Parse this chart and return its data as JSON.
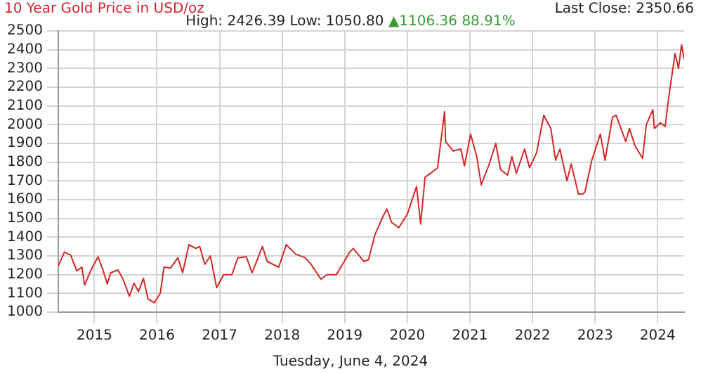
{
  "chart_data": {
    "type": "line",
    "title": "10 Year Gold Price in USD/oz",
    "subtitle": "High: 2426.39 Low: 1050.80",
    "annotations": [
      "▲1106.36 88.91%",
      "Last Close: 2350.66",
      "Tuesday, June 4, 2024"
    ],
    "x": [
      "2014-06-04",
      "2014-07-10",
      "2014-08-15",
      "2014-09-20",
      "2014-10-20",
      "2014-11-05",
      "2014-12-10",
      "2015-01-22",
      "2015-02-20",
      "2015-03-17",
      "2015-04-06",
      "2015-05-18",
      "2015-06-15",
      "2015-07-24",
      "2015-08-20",
      "2015-09-15",
      "2015-10-14",
      "2015-11-10",
      "2015-12-17",
      "2016-01-20",
      "2016-02-11",
      "2016-03-20",
      "2016-05-02",
      "2016-05-30",
      "2016-07-06",
      "2016-08-15",
      "2016-09-07",
      "2016-10-07",
      "2016-11-08",
      "2016-12-15",
      "2017-01-25",
      "2017-03-14",
      "2017-04-18",
      "2017-06-06",
      "2017-07-10",
      "2017-09-08",
      "2017-10-06",
      "2017-12-12",
      "2018-01-25",
      "2018-03-20",
      "2018-05-15",
      "2018-06-15",
      "2018-08-16",
      "2018-09-20",
      "2018-11-13",
      "2019-01-30",
      "2019-02-20",
      "2019-04-23",
      "2019-05-20",
      "2019-06-25",
      "2019-08-12",
      "2019-09-04",
      "2019-10-01",
      "2019-11-12",
      "2019-12-31",
      "2020-02-24",
      "2020-03-19",
      "2020-04-14",
      "2020-05-15",
      "2020-06-26",
      "2020-08-06",
      "2020-08-12",
      "2020-09-25",
      "2020-11-09",
      "2020-11-30",
      "2021-01-05",
      "2021-02-10",
      "2021-03-08",
      "2021-04-20",
      "2021-06-01",
      "2021-06-29",
      "2021-08-09",
      "2021-09-03",
      "2021-09-29",
      "2021-11-16",
      "2021-12-15",
      "2022-01-25",
      "2022-03-08",
      "2022-04-18",
      "2022-05-16",
      "2022-06-10",
      "2022-07-21",
      "2022-08-15",
      "2022-09-26",
      "2022-10-20",
      "2022-11-03",
      "2022-12-13",
      "2023-02-01",
      "2023-02-28",
      "2023-04-13",
      "2023-05-04",
      "2023-06-29",
      "2023-07-20",
      "2023-08-21",
      "2023-10-05",
      "2023-10-27",
      "2023-12-04",
      "2023-12-13",
      "2024-01-17",
      "2024-02-14",
      "2024-03-08",
      "2024-04-12",
      "2024-05-02",
      "2024-05-20",
      "2024-06-04"
    ],
    "series": [
      {
        "color": "#d62728",
        "values": [
          1245,
          1320,
          1305,
          1220,
          1240,
          1145,
          1220,
          1295,
          1225,
          1150,
          1210,
          1225,
          1180,
          1085,
          1155,
          1110,
          1180,
          1070,
          1050,
          1100,
          1240,
          1235,
          1290,
          1210,
          1360,
          1340,
          1350,
          1255,
          1300,
          1130,
          1200,
          1200,
          1290,
          1295,
          1210,
          1350,
          1270,
          1240,
          1360,
          1310,
          1290,
          1260,
          1175,
          1200,
          1200,
          1320,
          1340,
          1270,
          1280,
          1410,
          1510,
          1550,
          1480,
          1450,
          1520,
          1670,
          1470,
          1720,
          1740,
          1770,
          2070,
          1910,
          1860,
          1870,
          1780,
          1950,
          1830,
          1680,
          1780,
          1900,
          1760,
          1730,
          1830,
          1740,
          1870,
          1770,
          1850,
          2050,
          1980,
          1810,
          1870,
          1700,
          1790,
          1630,
          1630,
          1640,
          1810,
          1950,
          1810,
          2040,
          2050,
          1910,
          1980,
          1890,
          1820,
          2000,
          2080,
          1980,
          2010,
          1990,
          2160,
          2380,
          2300,
          2426,
          2350
        ]
      }
    ],
    "xlim": [
      "2014-06-04",
      "2024-06-04"
    ],
    "xticks": [
      "2015",
      "2016",
      "2017",
      "2018",
      "2019",
      "2020",
      "2021",
      "2022",
      "2023",
      "2024"
    ],
    "ylim": [
      1000,
      2500
    ],
    "yticks": [
      1000,
      1100,
      1200,
      1300,
      1400,
      1500,
      1600,
      1700,
      1800,
      1900,
      2000,
      2100,
      2200,
      2300,
      2400,
      2500
    ],
    "grid": true,
    "legend": false,
    "marker": "none",
    "line_style": "solid"
  }
}
